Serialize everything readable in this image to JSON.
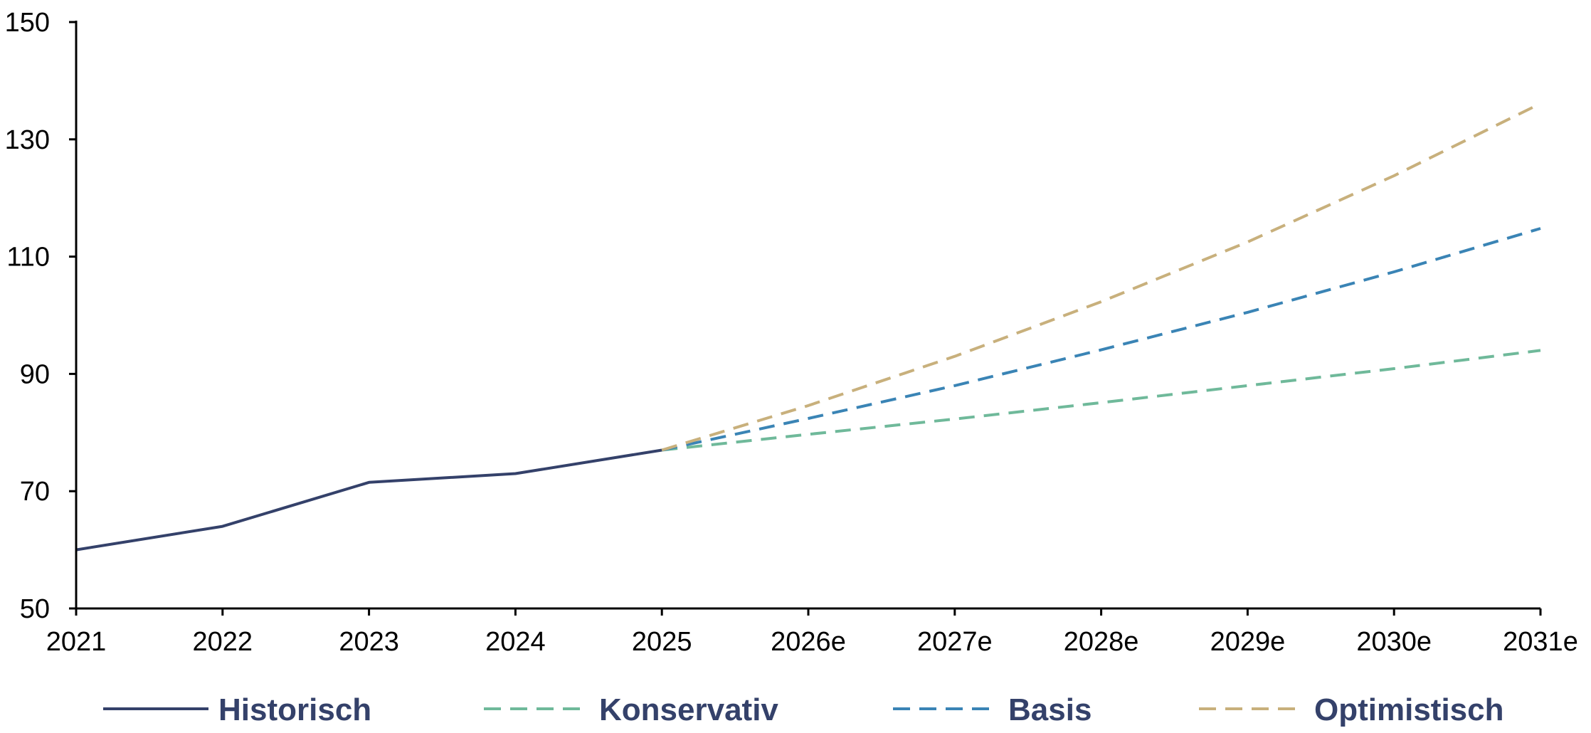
{
  "chart_data": {
    "type": "line",
    "categories": [
      "2021",
      "2022",
      "2023",
      "2024",
      "2025",
      "2026e",
      "2027e",
      "2028e",
      "2029e",
      "2030e",
      "2031e"
    ],
    "ylim": [
      50,
      150
    ],
    "yticks": [
      50,
      70,
      90,
      110,
      130,
      150
    ],
    "grid": false,
    "legend_position": "bottom",
    "series": [
      {
        "name": "Historisch",
        "color": "#34416a",
        "style": "solid",
        "values": [
          60,
          64,
          71.5,
          73,
          77,
          null,
          null,
          null,
          null,
          null,
          null
        ]
      },
      {
        "name": "Konservativ",
        "color": "#6fb99a",
        "style": "dashed",
        "values": [
          null,
          null,
          null,
          null,
          77,
          79.7,
          82.3,
          85.1,
          88,
          90.9,
          94
        ]
      },
      {
        "name": "Basis",
        "color": "#3a84b5",
        "style": "dashed",
        "values": [
          null,
          null,
          null,
          null,
          77,
          82.4,
          88,
          94.1,
          100.5,
          107.4,
          114.8
        ]
      },
      {
        "name": "Optimistisch",
        "color": "#c8b07c",
        "style": "dashed",
        "values": [
          null,
          null,
          null,
          null,
          77,
          84.6,
          93,
          102.3,
          112.5,
          123.8,
          136.1
        ]
      }
    ]
  }
}
